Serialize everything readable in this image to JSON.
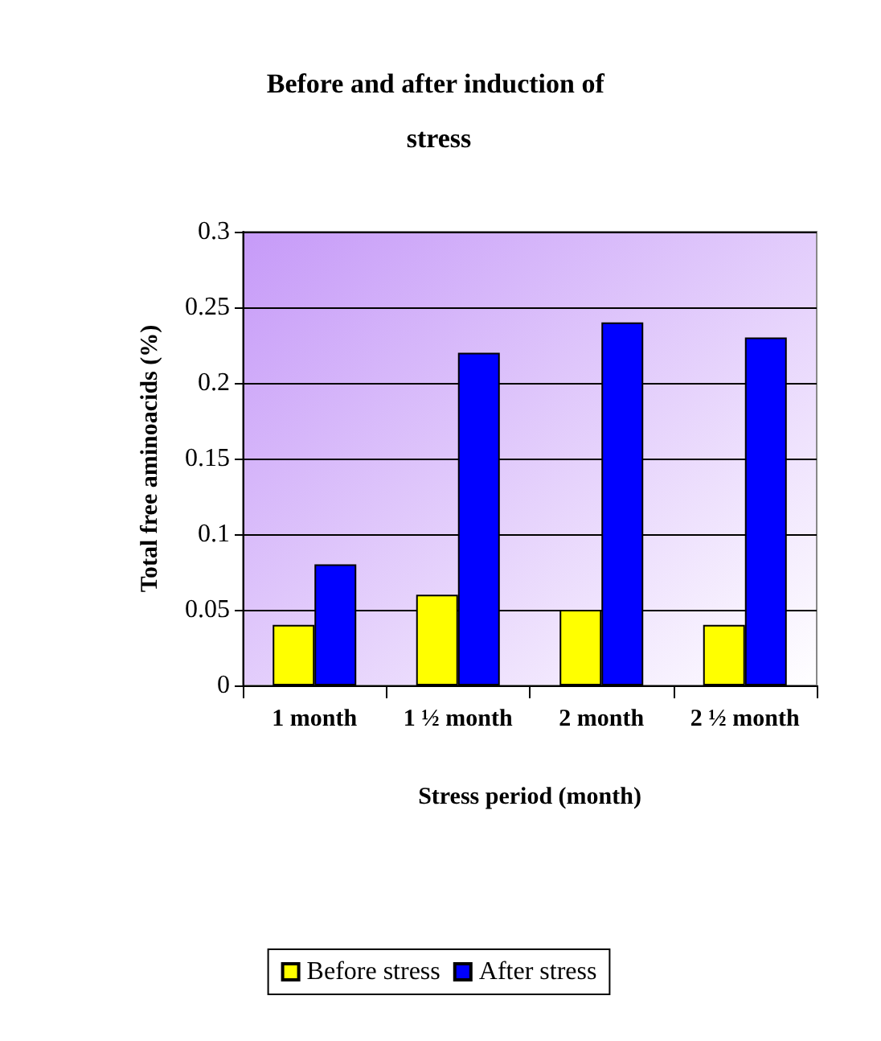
{
  "chart_data": {
    "type": "bar",
    "title": "Before and after induction of stress",
    "xlabel": "Stress period (month)",
    "ylabel": "Total free aminoacids (%)",
    "categories": [
      "1 month",
      "1 ½ month",
      "2 month",
      "2 ½ month"
    ],
    "series": [
      {
        "name": "Before stress",
        "color": "#ffff00",
        "values": [
          0.04,
          0.06,
          0.05,
          0.04
        ]
      },
      {
        "name": "After stress",
        "color": "#0000ff",
        "values": [
          0.08,
          0.22,
          0.24,
          0.23
        ]
      }
    ],
    "ylim": [
      0,
      0.3
    ],
    "yticks": [
      0,
      0.05,
      0.1,
      0.15,
      0.2,
      0.25,
      0.3
    ],
    "grid": "y",
    "legend": "bottom"
  }
}
